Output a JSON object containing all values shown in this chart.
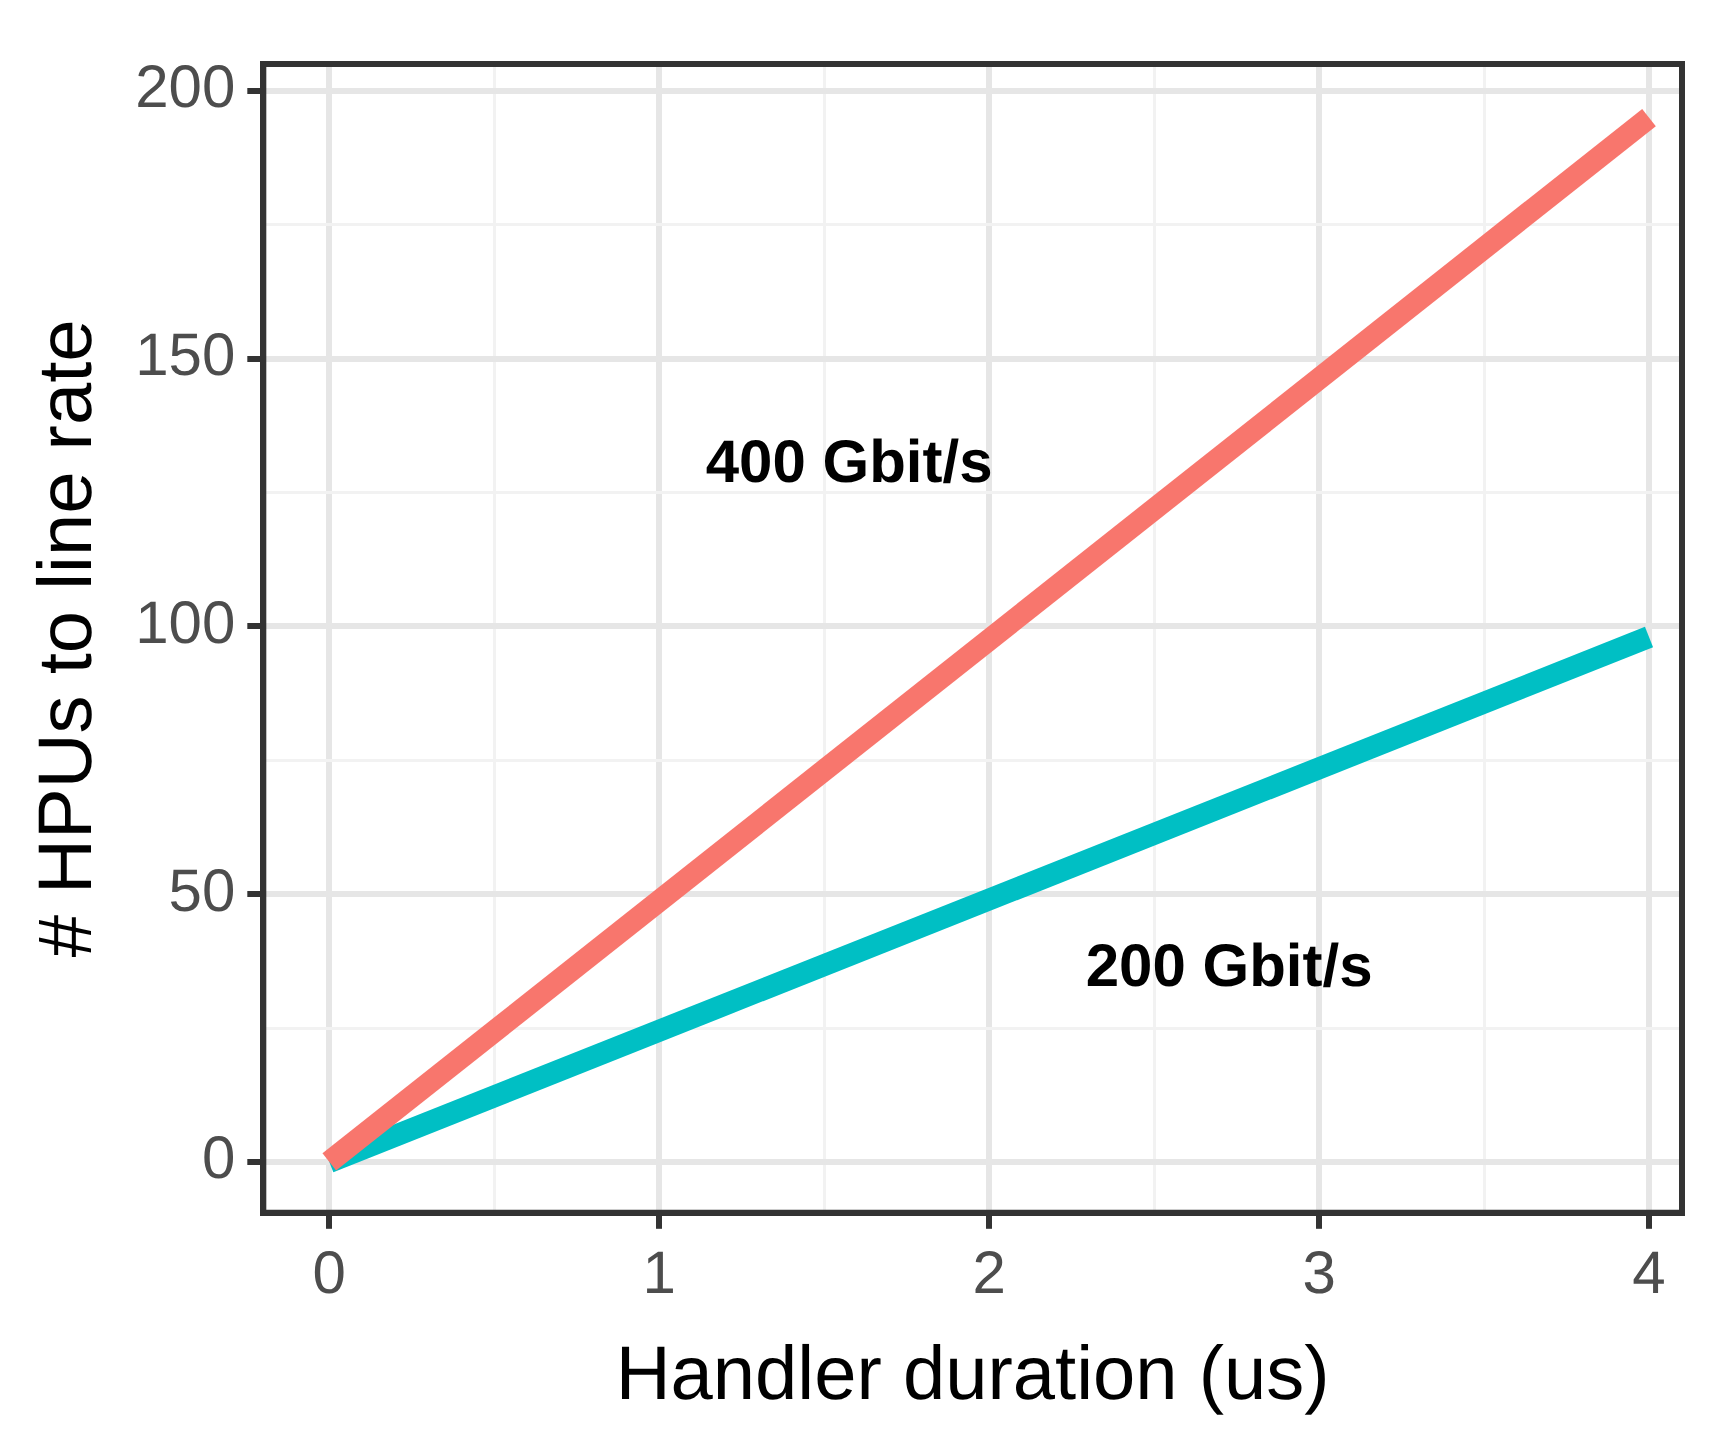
{
  "chart_data": {
    "type": "line",
    "xlabel": "Handler duration (us)",
    "ylabel": "# HPUs to line rate",
    "x": [
      0,
      4
    ],
    "series": [
      {
        "name": "400 Gbit/s",
        "color": "#f8766d",
        "values": [
          0,
          195
        ]
      },
      {
        "name": "200 Gbit/s",
        "color": "#00bfc4",
        "values": [
          0,
          98
        ]
      }
    ],
    "xlim": [
      -0.2,
      4.1
    ],
    "ylim": [
      -9.5,
      205
    ],
    "xticks": [
      0,
      {
        "value": 0.5,
        "label": null
      },
      1,
      {
        "value": 1.5,
        "label": null
      },
      2,
      {
        "value": 2.5,
        "label": null
      },
      3,
      {
        "value": 3.5,
        "label": null
      },
      4
    ],
    "yticks": [
      0,
      {
        "value": 25,
        "label": null
      },
      50,
      {
        "value": 75,
        "label": null
      },
      100,
      {
        "value": 125,
        "label": null
      },
      150,
      {
        "value": 175,
        "label": null
      },
      200
    ],
    "grid": true,
    "legend": false,
    "marker": "none",
    "line_style": "solid"
  }
}
